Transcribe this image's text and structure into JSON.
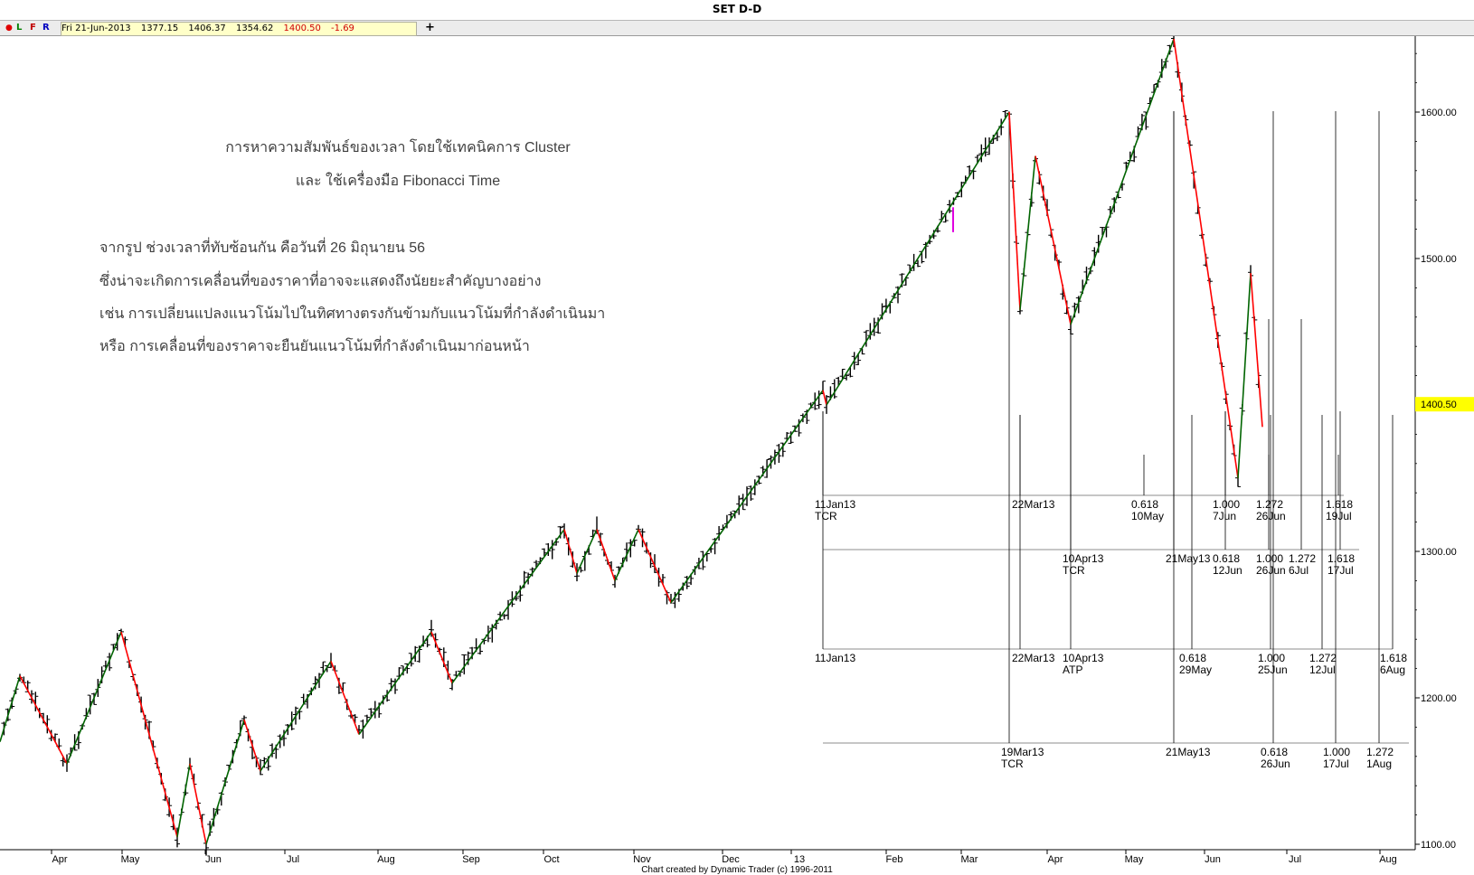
{
  "window": {
    "title": "SET D-D"
  },
  "toolbar": {
    "buttons": [
      {
        "label": "L"
      },
      {
        "label": "F"
      },
      {
        "label": "R"
      }
    ],
    "info": {
      "date": "Fri 21-Jun-2013",
      "open": "1377.15",
      "high": "1406.37",
      "low": "1354.62",
      "close": "1400.50",
      "change": "-1.69"
    },
    "add_icon": "plus-icon",
    "colors": {
      "close": "#d00000",
      "change": "#d00000"
    }
  },
  "credit": "Chart created by Dynamic Trader  (c) 1996-2011",
  "chart_data": {
    "type": "bar",
    "title": "SET D-D",
    "y_axis": {
      "range": [
        1100,
        1610
      ],
      "ticks": [
        "1100.00",
        "1200.00",
        "1300.00",
        "1400.00",
        "1500.00",
        "1600.00"
      ],
      "position": "right"
    },
    "current_price": {
      "value": 1400.5,
      "label": "1400.50",
      "color": "#ffff00"
    },
    "x_axis": {
      "ticks": [
        "Apr",
        "May",
        "Jun",
        "Jul",
        "Aug",
        "Sep",
        "Oct",
        "Nov",
        "Dec",
        "13",
        "Feb",
        "Mar",
        "Apr",
        "May",
        "Jun",
        "Jul",
        "Aug"
      ]
    },
    "annotation_title": [
      "การหาความสัมพันธ์ของเวลา โดยใช้เทคนิคการ Cluster",
      "และ ใช้เครื่องมือ Fibonacci Time"
    ],
    "annotation_body": [
      "จากรูป ช่วงเวลาที่ทับซ้อนกัน คือวันที่ 26 มิถุนายน 56",
      "ซึ่งน่าจะเกิดการเคลื่อนที่ของราคาที่อาจจะแสดงถึงนัยยะสำคัญบางอย่าง",
      "เช่น การเปลี่ยนแปลงแนวโน้มไปในทิศทางตรงกันข้ามกับแนวโน้มที่กำลังดำเนินมา",
      "หรือ การเคลื่อนที่ของราคาจะยืนยันแนวโน้มที่กำลังดำเนินมาก่อนหน้า"
    ],
    "swings": [
      {
        "date": "Mar 2012",
        "price": 1170
      },
      {
        "date": "Apr 2012",
        "price": 1215
      },
      {
        "date": "Apr 2012",
        "price": 1155
      },
      {
        "date": "May 2012",
        "price": 1245
      },
      {
        "date": "May 2012",
        "price": 1105
      },
      {
        "date": "Jun 2012",
        "price": 1155
      },
      {
        "date": "Jun 2012",
        "price": 1100
      },
      {
        "date": "Jun 2012",
        "price": 1185
      },
      {
        "date": "Jul 2012",
        "price": 1150
      },
      {
        "date": "Jul 2012",
        "price": 1225
      },
      {
        "date": "Aug 2012",
        "price": 1175
      },
      {
        "date": "Aug 2012",
        "price": 1245
      },
      {
        "date": "Aug 2012",
        "price": 1210
      },
      {
        "date": "Oct 2012",
        "price": 1315
      },
      {
        "date": "Oct 2012",
        "price": 1285
      },
      {
        "date": "Oct 2012",
        "price": 1315
      },
      {
        "date": "Oct 2012",
        "price": 1280
      },
      {
        "date": "Oct 2012",
        "price": 1315
      },
      {
        "date": "Nov 2012",
        "price": 1265
      },
      {
        "date": "Jan 2013",
        "price": 1410
      },
      {
        "date": "Jan 2013",
        "price": 1400
      },
      {
        "date": "Mar 2013",
        "price": 1600
      },
      {
        "date": "Mar 2013",
        "price": 1465
      },
      {
        "date": "Mar 2013",
        "price": 1570
      },
      {
        "date": "Apr 2013",
        "price": 1455
      },
      {
        "date": "May 2013",
        "price": 1650
      },
      {
        "date": "Jun 2013",
        "price": 1350
      },
      {
        "date": "Jun 2013",
        "price": 1490
      },
      {
        "date": "Jun 2013",
        "price": 1385
      }
    ],
    "fib_groups": [
      {
        "anchors": [
          {
            "date": "11Jan13",
            "tag": "TCR"
          },
          {
            "date": "22Mar13",
            "tag": ""
          }
        ],
        "projections": [
          {
            "ratio": "0.618",
            "date": "10May"
          },
          {
            "ratio": "1.000",
            "date": "7Jun"
          },
          {
            "ratio": "1.272",
            "date": "26Jun"
          },
          {
            "ratio": "1.618",
            "date": "19Jul"
          }
        ]
      },
      {
        "anchors": [
          {
            "date": "10Apr13",
            "tag": "TCR"
          },
          {
            "date": "21May13",
            "tag": ""
          }
        ],
        "projections": [
          {
            "ratio": "0.618",
            "date": "12Jun"
          },
          {
            "ratio": "1.000",
            "date": "26Jun"
          },
          {
            "ratio": "1.272",
            "date": "6Jul"
          },
          {
            "ratio": "1.618",
            "date": "17Jul"
          }
        ]
      },
      {
        "anchors": [
          {
            "date": "11Jan13",
            "tag": ""
          },
          {
            "date": "22Mar13",
            "tag": ""
          },
          {
            "date": "10Apr13",
            "tag": "ATP"
          }
        ],
        "projections": [
          {
            "ratio": "0.618",
            "date": "29May"
          },
          {
            "ratio": "1.000",
            "date": "25Jun"
          },
          {
            "ratio": "1.272",
            "date": "12Jul"
          },
          {
            "ratio": "1.618",
            "date": "6Aug"
          }
        ]
      },
      {
        "anchors": [
          {
            "date": "19Mar13",
            "tag": "TCR"
          },
          {
            "date": "21May13",
            "tag": ""
          }
        ],
        "projections": [
          {
            "ratio": "0.618",
            "date": "26Jun"
          },
          {
            "ratio": "1.000",
            "date": "17Jul"
          },
          {
            "ratio": "1.272",
            "date": "1Aug"
          }
        ]
      }
    ]
  }
}
